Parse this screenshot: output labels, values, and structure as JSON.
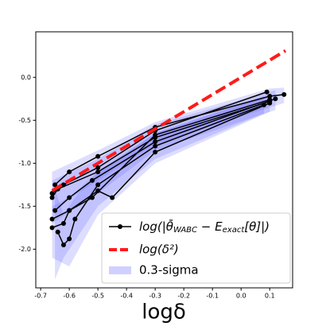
{
  "chart_data": {
    "type": "line",
    "xlabel": "logδ",
    "xlim": [
      -0.717,
      0.18
    ],
    "ylim": [
      -2.45,
      0.53
    ],
    "xticks": [
      -0.7,
      -0.6,
      -0.5,
      -0.4,
      -0.3,
      -0.2,
      -0.1,
      {
        "value": 0,
        "label": "0.0"
      },
      0.1
    ],
    "yticks": [
      {
        "value": 0,
        "label": "0.0"
      },
      -0.5,
      {
        "value": -1,
        "label": "-1.0"
      },
      -1.5,
      {
        "value": -2,
        "label": "-2.0"
      }
    ],
    "lines": {
      "name_parts": [
        "log(|θ̄",
        "WABC",
        " − E",
        "exact",
        "[θ]|)"
      ],
      "color": "#000000",
      "series": [
        {
          "x": [
            -0.65,
            -0.6,
            -0.5,
            -0.3,
            0.1,
            0.15
          ],
          "values": [
            -1.25,
            -1.1,
            -0.92,
            -0.58,
            -0.22,
            -0.2
          ]
        },
        {
          "x": [
            -0.66,
            -0.62,
            -0.5,
            -0.3,
            0.09
          ],
          "values": [
            -1.35,
            -1.25,
            -1.05,
            -0.62,
            -0.17
          ]
        },
        {
          "x": [
            -0.66,
            -0.64,
            -0.5,
            -0.3,
            0.1
          ],
          "values": [
            -1.4,
            -1.3,
            -1.1,
            -0.7,
            -0.28
          ]
        },
        {
          "x": [
            -0.65,
            -0.6,
            -0.52,
            -0.3,
            0.12
          ],
          "values": [
            -1.55,
            -1.4,
            -1.2,
            -0.75,
            -0.25
          ]
        },
        {
          "x": [
            -0.66,
            -0.6,
            -0.5,
            -0.45,
            -0.3,
            0.1
          ],
          "values": [
            -1.65,
            -1.55,
            -1.32,
            -1.4,
            -0.87,
            -0.3
          ]
        },
        {
          "x": [
            -0.64,
            -0.62,
            -0.6,
            -0.58,
            -0.5,
            -0.3,
            0.08
          ],
          "values": [
            -1.8,
            -1.95,
            -1.88,
            -1.65,
            -1.25,
            -0.8,
            -0.32
          ]
        },
        {
          "x": [
            -0.66,
            -0.62,
            -0.6,
            -0.52,
            -0.3,
            0.1
          ],
          "values": [
            -1.75,
            -1.7,
            -1.55,
            -1.4,
            -0.67,
            -0.26
          ]
        }
      ]
    },
    "reference": {
      "name": "log(δ²)",
      "color": "#ff1a1a",
      "x": [
        -0.66,
        0.155
      ],
      "values": [
        -1.32,
        0.31
      ]
    },
    "bands": {
      "name": "0.3-sigma",
      "color": "#6464ff",
      "series": [
        {
          "x": [
            -0.66,
            -0.5,
            -0.3,
            0.1,
            0.15
          ],
          "lower": [
            -1.55,
            -1.2,
            -0.78,
            -0.35,
            -0.3
          ],
          "upper": [
            -1.1,
            -0.85,
            -0.52,
            -0.13,
            -0.12
          ]
        },
        {
          "x": [
            -0.66,
            -0.6,
            -0.5,
            -0.3,
            0.1
          ],
          "lower": [
            -2.1,
            -2.2,
            -1.6,
            -1.0,
            -0.4
          ],
          "upper": [
            -1.5,
            -1.4,
            -1.1,
            -0.65,
            -0.2
          ]
        },
        {
          "x": [
            -0.65,
            -0.62,
            -0.58,
            -0.5,
            -0.3,
            0.08
          ],
          "lower": [
            -2.35,
            -2.1,
            -1.9,
            -1.5,
            -0.95,
            -0.42
          ],
          "upper": [
            -1.3,
            -1.6,
            -1.4,
            -1.1,
            -0.65,
            -0.22
          ]
        },
        {
          "x": [
            -0.66,
            -0.5,
            -0.3,
            0.12
          ],
          "lower": [
            -1.7,
            -1.35,
            -0.85,
            -0.38
          ],
          "upper": [
            -1.2,
            -0.95,
            -0.55,
            -0.15
          ]
        }
      ]
    }
  }
}
